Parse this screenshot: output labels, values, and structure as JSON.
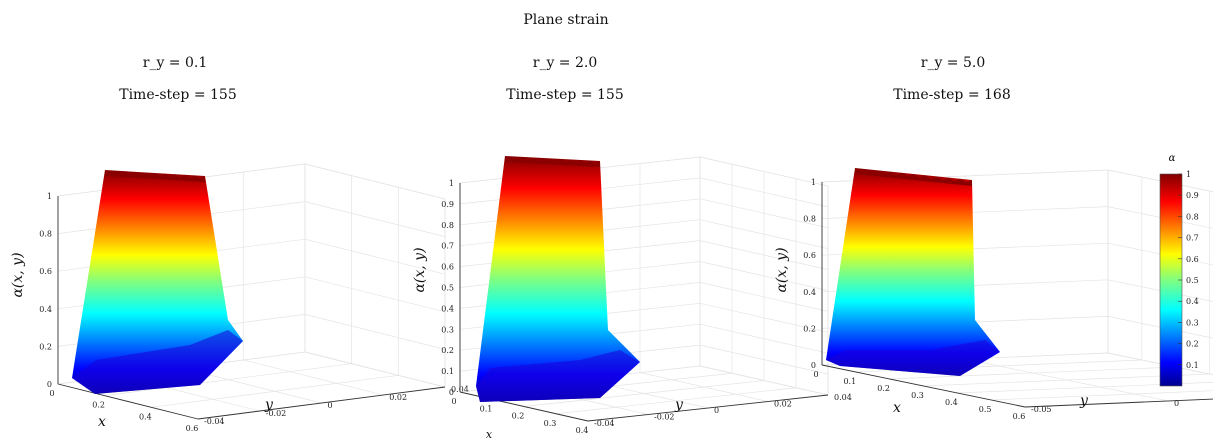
{
  "figure": {
    "suptitle": "Plane strain"
  },
  "colorbar": {
    "label": "α",
    "ticks": [
      "1",
      "0.9",
      "0.8",
      "0.7",
      "0.6",
      "0.5",
      "0.4",
      "0.3",
      "0.2",
      "0.1"
    ],
    "colormap": "jet",
    "range": [
      0,
      1
    ]
  },
  "chart_data": [
    {
      "type": "surface",
      "title_line1": "r_y = 0.1",
      "title_line2": "Time-step = 155",
      "xlabel": "x",
      "ylabel": "y",
      "zlabel": "α(x, y)",
      "x_ticks": [
        "0",
        "0.2",
        "0.4",
        "0.6"
      ],
      "y_ticks": [
        "-0.04",
        "-0.02",
        "0",
        "0.02",
        "0.04"
      ],
      "z_ticks": [
        "0",
        "0.2",
        "0.4",
        "0.6",
        "0.8",
        "1"
      ],
      "zlim": [
        0,
        1
      ],
      "grid": true,
      "colormap": "jet"
    },
    {
      "type": "surface",
      "title_line1": "r_y = 2.0",
      "title_line2": "Time-step = 155",
      "xlabel": "x",
      "ylabel": "y",
      "zlabel": "α(x, y)",
      "x_ticks": [
        "0",
        "0.1",
        "0.2",
        "0.3",
        "0.4"
      ],
      "y_ticks": [
        "-0.04",
        "-0.02",
        "0",
        "0.02",
        "0.04"
      ],
      "z_ticks": [
        "0",
        "0.1",
        "0.2",
        "0.3",
        "0.4",
        "0.5",
        "0.6",
        "0.7",
        "0.8",
        "0.9",
        "1"
      ],
      "zlim": [
        0,
        1
      ],
      "grid": true,
      "colormap": "jet"
    },
    {
      "type": "surface",
      "title_line1": "r_y = 5.0",
      "title_line2": "Time-step = 168",
      "xlabel": "x",
      "ylabel": "y",
      "zlabel": "α(x, y)",
      "x_ticks": [
        "0",
        "0.1",
        "0.2",
        "0.3",
        "0.4",
        "0.5",
        "0.6"
      ],
      "y_ticks": [
        "-0.05",
        "0",
        "0.05"
      ],
      "z_ticks": [
        "0",
        "0.2",
        "0.4",
        "0.6",
        "0.8",
        "1"
      ],
      "zlim": [
        0,
        1
      ],
      "grid": true,
      "colormap": "jet"
    }
  ]
}
